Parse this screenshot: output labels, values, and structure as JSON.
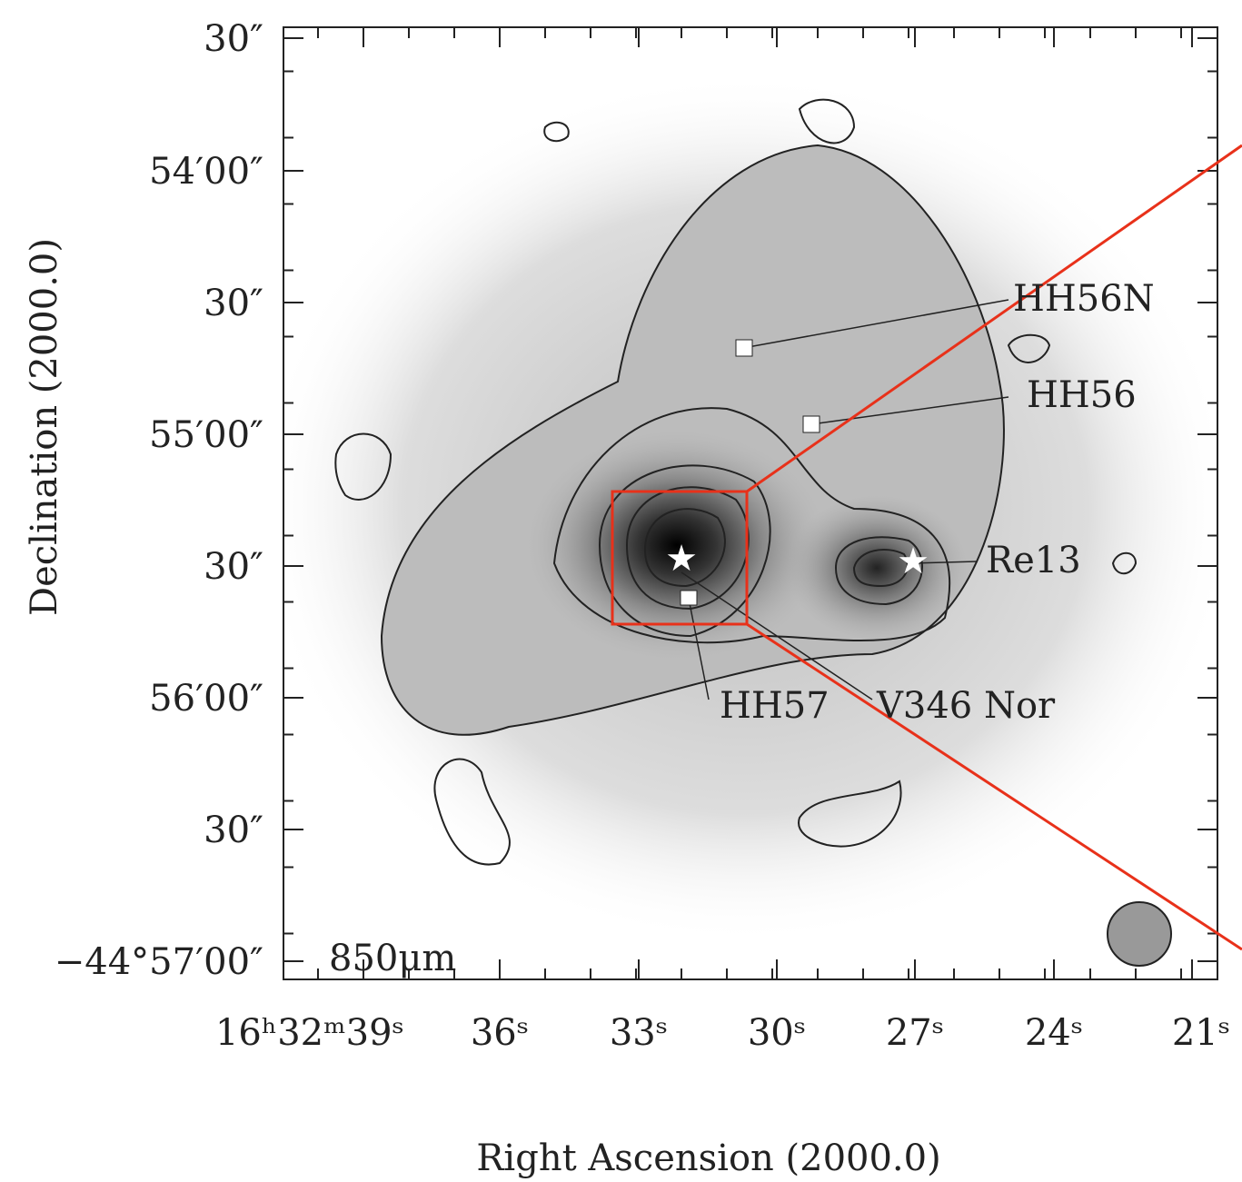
{
  "figure": {
    "y_axis": {
      "label": "Declination (2000.0)",
      "ticks": [
        "30″",
        "54′00″",
        "30″",
        "55′00″",
        "30″",
        "56′00″",
        "30″",
        "−44°57′00″"
      ]
    },
    "x_axis": {
      "label": "Right Ascension (2000.0)",
      "ticks": [
        "16ʰ32ᵐ39ˢ",
        "36ˢ",
        "33ˢ",
        "30ˢ",
        "27ˢ",
        "24ˢ",
        "21ˢ"
      ]
    },
    "annotations": {
      "hh56n": "HH56N",
      "hh56": "HH56",
      "re13": "Re13",
      "hh57": "HH57",
      "v346": "V346 Nor",
      "band": "850μm"
    }
  }
}
